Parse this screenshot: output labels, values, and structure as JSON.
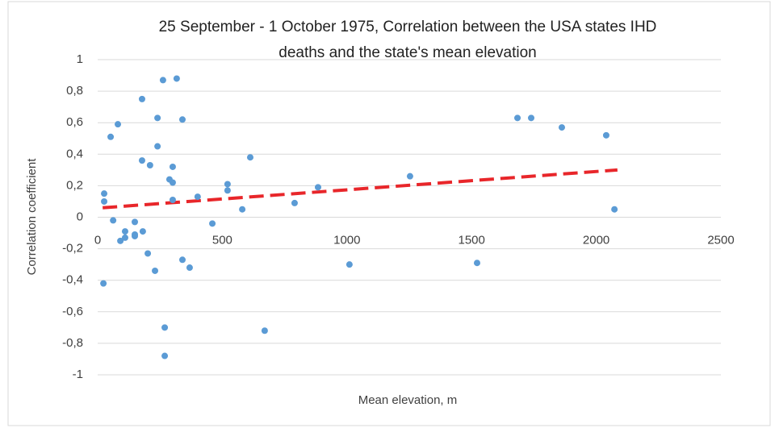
{
  "chart_data": {
    "type": "scatter",
    "title": [
      "25 September - 1 October 1975, Correlation between the USA states IHD",
      "deaths and the state's mean elevation"
    ],
    "x_label": "Mean elevation, m",
    "y_label": "Correlation coefficient",
    "color": "#5b9bd5",
    "x": [
      26,
      26,
      23,
      52,
      62,
      81,
      91,
      110,
      110,
      149,
      149,
      149,
      178,
      178,
      181,
      201,
      210,
      230,
      240,
      240,
      262,
      269,
      269,
      288,
      301,
      301,
      301,
      317,
      340,
      340,
      369,
      401,
      460,
      521,
      521,
      580,
      612,
      670,
      790,
      884,
      1010,
      1253,
      1522,
      1684,
      1739,
      1862,
      2040,
      2073
    ],
    "values": [
      0.15,
      0.1,
      -0.42,
      0.51,
      -0.02,
      0.59,
      -0.15,
      -0.09,
      -0.13,
      -0.03,
      -0.11,
      -0.12,
      0.75,
      0.36,
      -0.09,
      -0.23,
      0.33,
      -0.34,
      0.45,
      0.63,
      0.87,
      -0.7,
      -0.88,
      0.24,
      0.32,
      0.22,
      0.11,
      0.88,
      0.62,
      -0.27,
      -0.32,
      0.13,
      -0.04,
      0.21,
      0.17,
      0.05,
      0.38,
      -0.72,
      0.09,
      0.19,
      -0.3,
      0.26,
      -0.29,
      0.63,
      0.63,
      0.57,
      0.52,
      0.05
    ],
    "trendline": {
      "color": "#e8262a",
      "x": [
        20,
        2085
      ],
      "values": [
        0.06,
        0.3
      ]
    },
    "xlim": [
      0,
      2500
    ],
    "xticks": [
      0,
      500,
      1000,
      1500,
      2000,
      2500
    ],
    "ylim": [
      -1,
      1
    ],
    "yticks": [
      -1,
      {
        "value": -0.8,
        "label": "-0,8"
      },
      {
        "value": -0.6,
        "label": "-0,6"
      },
      {
        "value": -0.4,
        "label": "-0,4"
      },
      {
        "value": -0.2,
        "label": "-0,2"
      },
      0,
      {
        "value": 0.2,
        "label": "0,2"
      },
      {
        "value": 0.4,
        "label": "0,4"
      },
      {
        "value": 0.6,
        "label": "0,6"
      },
      {
        "value": 0.8,
        "label": "0,8"
      },
      1
    ],
    "grid": true
  }
}
